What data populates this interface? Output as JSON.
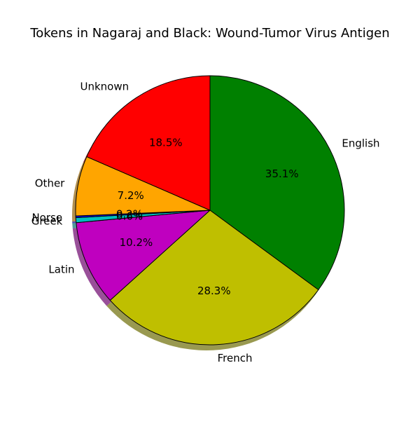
{
  "chart_data": {
    "type": "pie",
    "title": "Tokens in Nagaraj and Black: Wound-Tumor Virus Antigen",
    "start_angle_deg": 90,
    "direction": "clockwise",
    "shadow": true,
    "edge_color": "#000000",
    "slices": [
      {
        "label": "English",
        "value": 35.1,
        "pct_label": "35.1%",
        "color": "#008000"
      },
      {
        "label": "French",
        "value": 28.3,
        "pct_label": "28.3%",
        "color": "#bfbf00"
      },
      {
        "label": "Latin",
        "value": 10.2,
        "pct_label": "10.2%",
        "color": "#bf00bf"
      },
      {
        "label": "Greek",
        "value": 0.6,
        "pct_label": "0.6%",
        "color": "#00bfbf"
      },
      {
        "label": "Norse",
        "value": 0.2,
        "pct_label": "0.2%",
        "color": "#0000ff"
      },
      {
        "label": "Other",
        "value": 7.2,
        "pct_label": "7.2%",
        "color": "#ffa500"
      },
      {
        "label": "Unknown",
        "value": 18.5,
        "pct_label": "18.5%",
        "color": "#ff0000"
      }
    ]
  }
}
